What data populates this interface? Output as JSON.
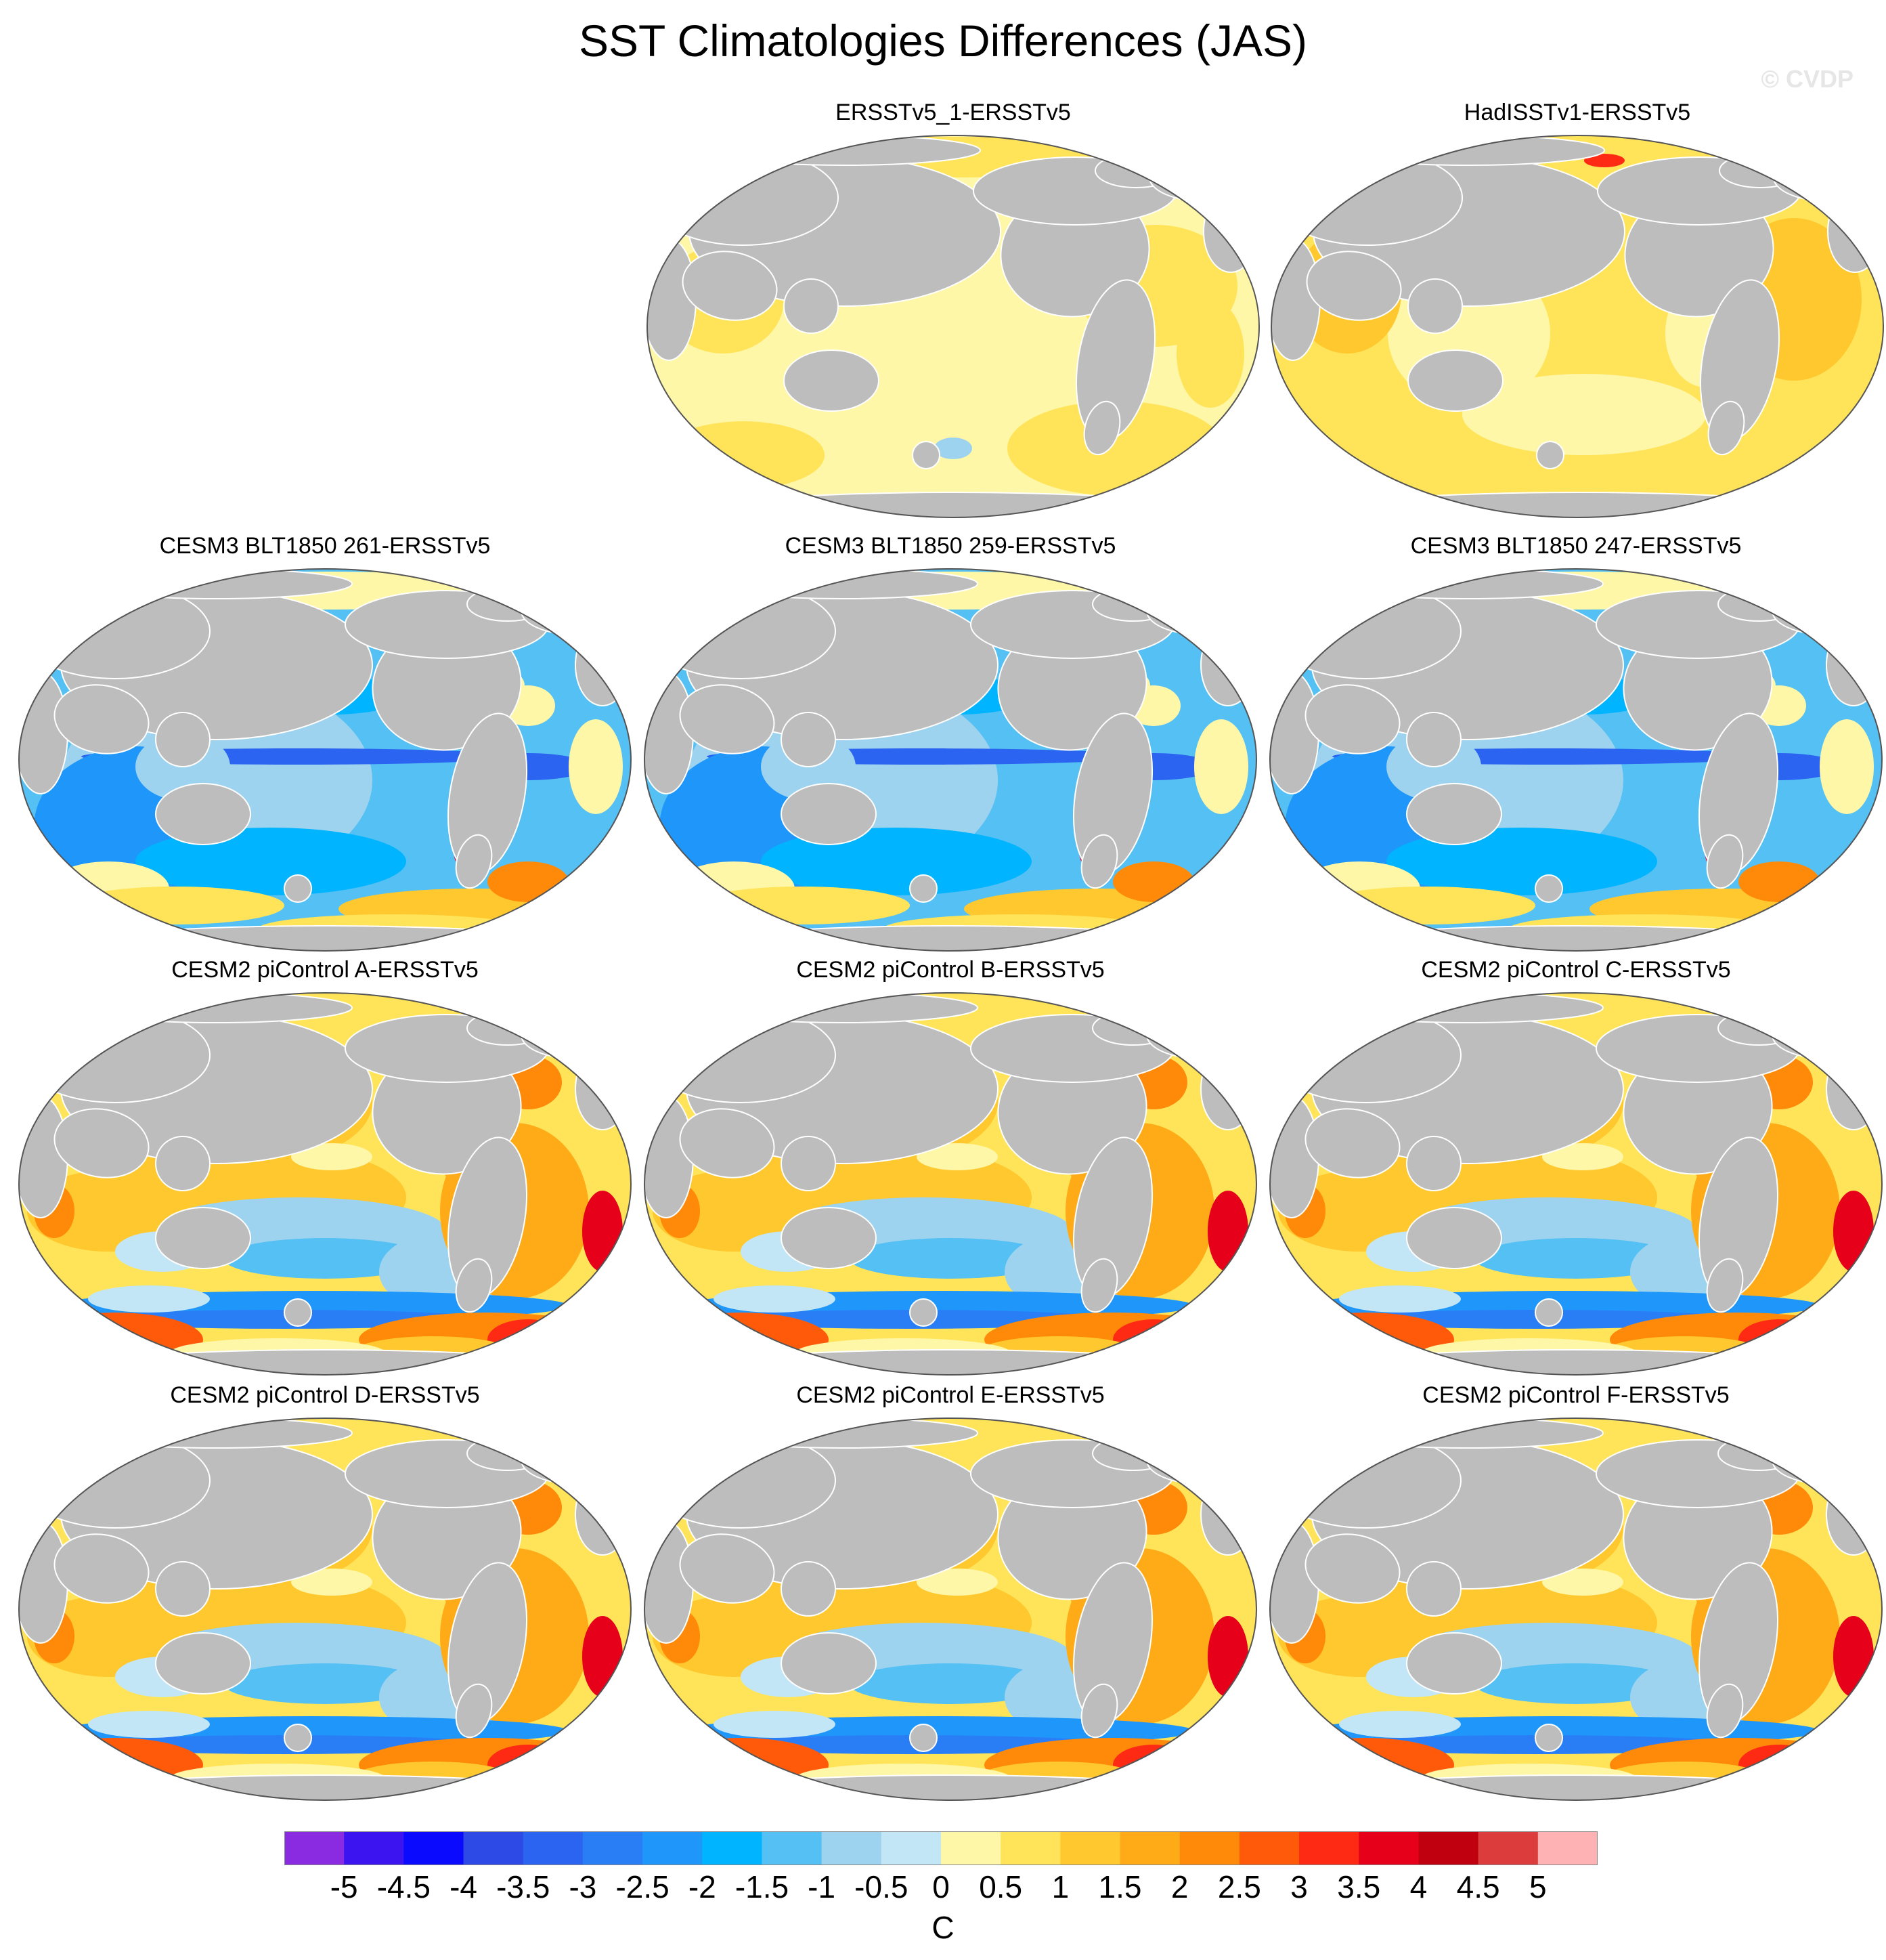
{
  "title": "SST Climatologies Differences (JAS)",
  "watermark": "© CVDP",
  "map_data": {
    "projection": "Robinson-style global ellipse",
    "ocean_field": "SST climatology difference",
    "land_color": "#bdbdbd",
    "panels": [
      {
        "title": "ERSSTv5_1-ERSSTv5",
        "pattern": "obs_small"
      },
      {
        "title": "HadISSTv1-ERSSTv5",
        "pattern": "obs_warm"
      },
      {
        "title": "CESM3 BLT1850 261-ERSSTv5",
        "pattern": "cesm3"
      },
      {
        "title": "CESM3 BLT1850 259-ERSSTv5",
        "pattern": "cesm3"
      },
      {
        "title": "CESM3 BLT1850 247-ERSSTv5",
        "pattern": "cesm3"
      },
      {
        "title": "CESM2 piControl A-ERSSTv5",
        "pattern": "cesm2"
      },
      {
        "title": "CESM2 piControl B-ERSSTv5",
        "pattern": "cesm2"
      },
      {
        "title": "CESM2 piControl C-ERSSTv5",
        "pattern": "cesm2"
      },
      {
        "title": "CESM2 piControl D-ERSSTv5",
        "pattern": "cesm2"
      },
      {
        "title": "CESM2 piControl E-ERSSTv5",
        "pattern": "cesm2"
      },
      {
        "title": "CESM2 piControl F-ERSSTv5",
        "pattern": "cesm2"
      }
    ]
  },
  "colorbar": {
    "units": "C",
    "tick_labels": [
      "-5",
      "-4.5",
      "-4",
      "-3.5",
      "-3",
      "-2.5",
      "-2",
      "-1.5",
      "-1",
      "-0.5",
      "0",
      "0.5",
      "1",
      "1.5",
      "2",
      "2.5",
      "3",
      "3.5",
      "4",
      "4.5",
      "5"
    ],
    "colors": [
      "#8a2be2",
      "#3c14f0",
      "#0a0aff",
      "#2e4ae6",
      "#2b64f0",
      "#2a7ef5",
      "#1f96fa",
      "#00b4ff",
      "#55c0f3",
      "#9dd3ef",
      "#c3e6f6",
      "#fff7a8",
      "#ffe45a",
      "#ffc82e",
      "#ffab17",
      "#ff8a0a",
      "#ff5a0a",
      "#ff2a14",
      "#e6001a",
      "#c0000f",
      "#dc3c3c",
      "#ffb2b4"
    ]
  }
}
